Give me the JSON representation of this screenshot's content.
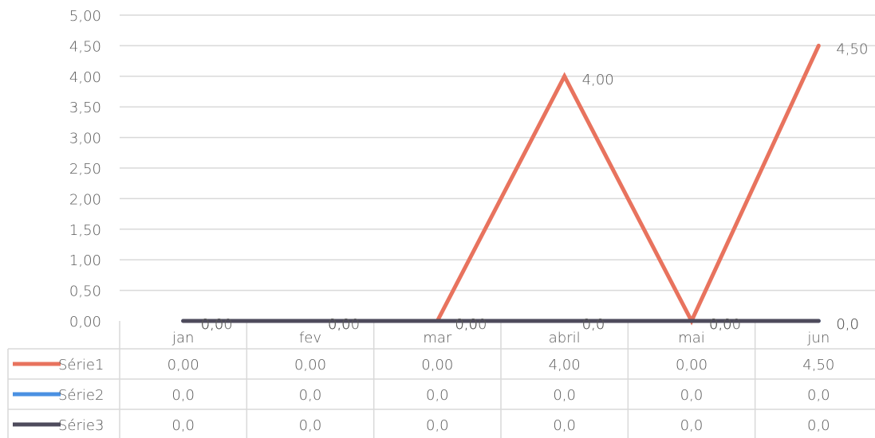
{
  "chart_data": {
    "type": "line",
    "categories": [
      "jan",
      "fev",
      "mar",
      "abril",
      "mai",
      "jun"
    ],
    "ylim": [
      0,
      5
    ],
    "yticks": [
      "0,00",
      "0,50",
      "1,00",
      "1,50",
      "2,00",
      "2,50",
      "3,00",
      "3,50",
      "4,00",
      "4,50",
      "5,00"
    ],
    "grid": true,
    "legend": "data-table",
    "series": [
      {
        "name": "Série1",
        "color": "#E8735E",
        "values": [
          0,
          0,
          0,
          4,
          0,
          4.5
        ],
        "labels": [
          "0,00",
          "0,00",
          "0,00",
          "4,00",
          "0,00",
          "4,50"
        ]
      },
      {
        "name": "Série2",
        "color": "#4A90E2",
        "values": [
          0,
          0,
          0,
          0,
          0,
          0
        ],
        "labels": [
          "0,0",
          "0,0",
          "0,0",
          "0,0",
          "0,0",
          "0,0"
        ]
      },
      {
        "name": "Série3",
        "color": "#4E4B5C",
        "values": [
          0,
          0,
          0,
          0,
          0,
          0
        ],
        "labels": [
          "0,0",
          "0,0",
          "0,0",
          "0,0",
          "0,0",
          "0,0"
        ]
      }
    ]
  }
}
